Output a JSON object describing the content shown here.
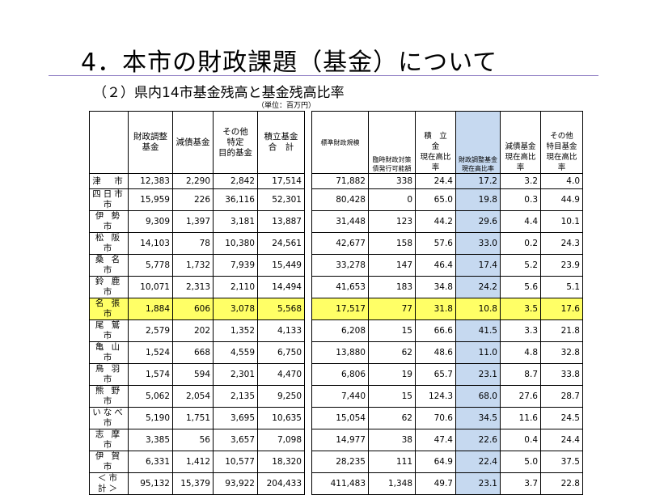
{
  "title": "4．本市の財政課題（基金）について",
  "subtitle": "（２）県内14市基金残高と基金残高比率",
  "unit": "（単位：百万円）",
  "headers": {
    "h1": "財政調整\n基金",
    "h2": "減債基金",
    "h3": "その他\n特定\n目的基金",
    "h4": "積立基金\n合　計",
    "h5": "標準財政規模",
    "h6": "臨時財政対策\n債発行可能額",
    "h7": "積　立　金\n現在高比率",
    "h8": "財政調整基金\n現在高比率",
    "h9": "減債基金\n現在高比率",
    "h10": "その他\n特目基金\n現在高比率"
  },
  "rows": [
    {
      "city": "津　市",
      "c": [
        "12,383",
        "2,290",
        "2,842",
        "17,514",
        "71,882",
        "338",
        "24.4",
        "17.2",
        "3.2",
        "4.0"
      ]
    },
    {
      "city": "四日市市",
      "c": [
        "15,959",
        "226",
        "36,116",
        "52,301",
        "80,428",
        "0",
        "65.0",
        "19.8",
        "0.3",
        "44.9"
      ]
    },
    {
      "city": "伊 勢 市",
      "c": [
        "9,309",
        "1,397",
        "3,181",
        "13,887",
        "31,448",
        "123",
        "44.2",
        "29.6",
        "4.4",
        "10.1"
      ]
    },
    {
      "city": "松 阪 市",
      "c": [
        "14,103",
        "78",
        "10,380",
        "24,561",
        "42,677",
        "158",
        "57.6",
        "33.0",
        "0.2",
        "24.3"
      ]
    },
    {
      "city": "桑 名 市",
      "c": [
        "5,778",
        "1,732",
        "7,939",
        "15,449",
        "33,278",
        "147",
        "46.4",
        "17.4",
        "5.2",
        "23.9"
      ]
    },
    {
      "city": "鈴 鹿 市",
      "c": [
        "10,071",
        "2,313",
        "2,110",
        "14,494",
        "41,653",
        "183",
        "34.8",
        "24.2",
        "5.6",
        "5.1"
      ]
    },
    {
      "city": "名 張 市",
      "c": [
        "1,884",
        "606",
        "3,078",
        "5,568",
        "17,517",
        "77",
        "31.8",
        "10.8",
        "3.5",
        "17.6"
      ],
      "highlight": true
    },
    {
      "city": "尾 鷲 市",
      "c": [
        "2,579",
        "202",
        "1,352",
        "4,133",
        "6,208",
        "15",
        "66.6",
        "41.5",
        "3.3",
        "21.8"
      ]
    },
    {
      "city": "亀 山 市",
      "c": [
        "1,524",
        "668",
        "4,559",
        "6,750",
        "13,880",
        "62",
        "48.6",
        "11.0",
        "4.8",
        "32.8"
      ]
    },
    {
      "city": "鳥 羽 市",
      "c": [
        "1,574",
        "594",
        "2,301",
        "4,470",
        "6,806",
        "19",
        "65.7",
        "23.1",
        "8.7",
        "33.8"
      ]
    },
    {
      "city": "熊 野 市",
      "c": [
        "5,062",
        "2,054",
        "2,135",
        "9,250",
        "7,440",
        "15",
        "124.3",
        "68.0",
        "27.6",
        "28.7"
      ]
    },
    {
      "city": "いなべ市",
      "c": [
        "5,190",
        "1,751",
        "3,695",
        "10,635",
        "15,054",
        "62",
        "70.6",
        "34.5",
        "11.6",
        "24.5"
      ]
    },
    {
      "city": "志 摩 市",
      "c": [
        "3,385",
        "56",
        "3,657",
        "7,098",
        "14,977",
        "38",
        "47.4",
        "22.6",
        "0.4",
        "24.4"
      ]
    },
    {
      "city": "伊 賀 市",
      "c": [
        "6,331",
        "1,412",
        "10,577",
        "18,320",
        "28,235",
        "111",
        "64.9",
        "22.4",
        "5.0",
        "37.5"
      ]
    },
    {
      "city": "＜市 計＞",
      "c": [
        "95,132",
        "15,379",
        "93,922",
        "204,433",
        "411,483",
        "1,348",
        "49.7",
        "23.1",
        "3.7",
        "22.8"
      ]
    }
  ],
  "colors": {
    "highlight": "#ffff66",
    "blue_column": "#c6d9f0",
    "rule": "#8e7cc3"
  }
}
